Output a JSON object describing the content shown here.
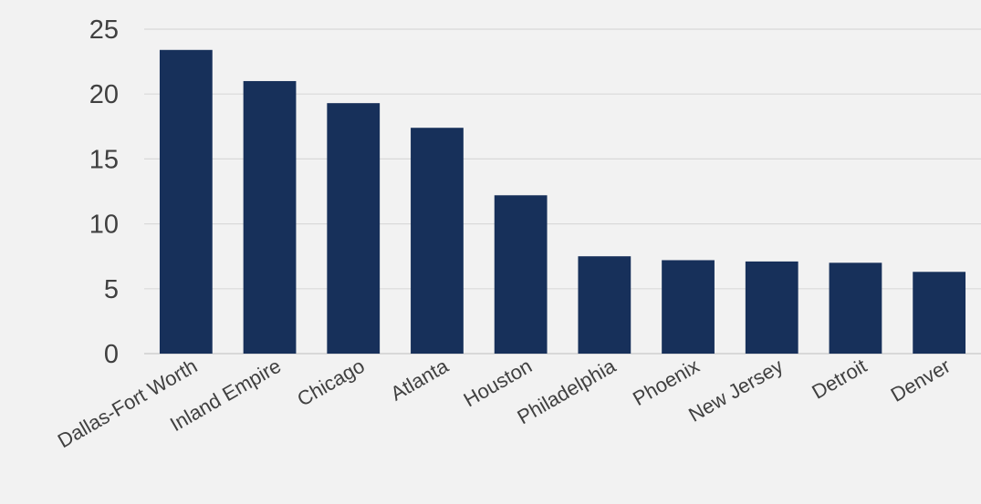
{
  "chart_data": {
    "type": "bar",
    "title": "",
    "xlabel": "",
    "ylabel": "",
    "categories": [
      "Dallas-Fort Worth",
      "Inland Empire",
      "Chicago",
      "Atlanta",
      "Houston",
      "Philadelphia",
      "Phoenix",
      "New Jersey",
      "Detroit",
      "Denver"
    ],
    "values": [
      23.4,
      21.0,
      19.3,
      17.4,
      12.2,
      7.5,
      7.2,
      7.1,
      7.0,
      6.3
    ],
    "ylim": [
      0,
      25
    ],
    "yticks": [
      "0",
      "5",
      "10",
      "15",
      "20",
      "25"
    ],
    "grid": true,
    "legend": "none",
    "bar_color": "#17305a"
  }
}
